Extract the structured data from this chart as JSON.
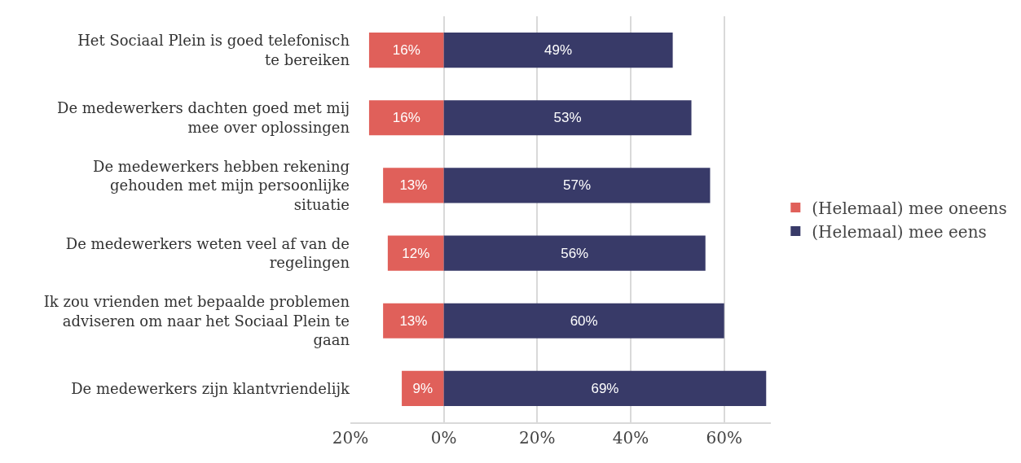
{
  "chart_data": {
    "type": "bar",
    "orientation": "horizontal",
    "categories": [
      "Het Sociaal Plein is goed telefonisch te bereiken",
      "De medewerkers dachten goed met mij mee over oplossingen",
      "De medewerkers hebben rekening gehouden met mijn persoonlijke situatie",
      "De medewerkers weten veel af van de regelingen",
      "Ik zou vrienden met bepaalde problemen adviseren om naar het Sociaal Plein te gaan",
      "De medewerkers zijn klantvriendelijk"
    ],
    "series": [
      {
        "name": "(Helemaal) mee oneens",
        "color": "#e0605a",
        "values": [
          16,
          16,
          13,
          12,
          13,
          9
        ],
        "base": [
          -16,
          -16,
          -13,
          -12,
          -13,
          -9
        ],
        "value_labels": [
          "16%",
          "16%",
          "13%",
          "12%",
          "13%",
          "9%"
        ]
      },
      {
        "name": "(Helemaal) mee eens",
        "color": "#383a68",
        "values": [
          49,
          53,
          57,
          56,
          60,
          69
        ],
        "value_labels": [
          "49%",
          "53%",
          "57%",
          "56%",
          "60%",
          "69%"
        ]
      }
    ],
    "xlim": [
      -20,
      70
    ],
    "xticks": [
      {
        "value": -20,
        "label": "20%"
      },
      {
        "value": 0,
        "label": "0%"
      },
      {
        "value": 20,
        "label": "20%"
      },
      {
        "value": 40,
        "label": "40%"
      },
      {
        "value": 60,
        "label": "60%"
      }
    ],
    "grid": "x",
    "legend": "right"
  }
}
